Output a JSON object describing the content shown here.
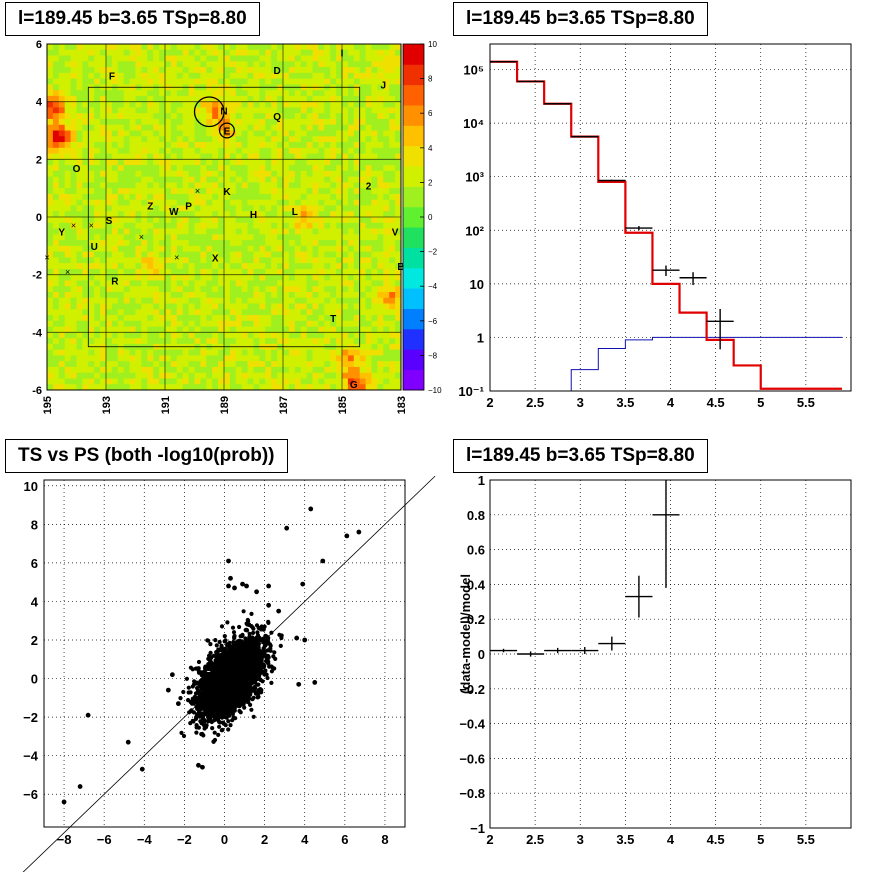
{
  "titles": {
    "map": "l=189.45 b=3.65 TSp=8.80",
    "spectrum": "l=189.45 b=3.65 TSp=8.80",
    "scatter": "TS vs PS (both -log10(prob))",
    "residual": "l=189.45 b=3.65 TSp=8.80"
  },
  "chart_data": [
    {
      "type": "heatmap",
      "xlim": [
        195,
        183
      ],
      "ylim": [
        -6,
        6
      ],
      "x_ticks": [
        "195",
        "193",
        "191",
        "189",
        "187",
        "185",
        "183"
      ],
      "y_ticks": [
        "-6",
        "-4",
        "-2",
        "0",
        "2",
        "4",
        "6"
      ],
      "colorbar_ticks": [
        "10",
        "8",
        "6",
        "4",
        "2",
        "0",
        "−2",
        "−4",
        "−6",
        "−8",
        "−10"
      ],
      "zlim": [
        -10,
        10
      ],
      "background_level": 2,
      "grid": true,
      "source_labels": [
        {
          "name": "I",
          "x": 185.0,
          "y": 5.7
        },
        {
          "name": "D",
          "x": 187.2,
          "y": 5.1
        },
        {
          "name": "J",
          "x": 183.6,
          "y": 4.6
        },
        {
          "name": "F",
          "x": 192.8,
          "y": 4.9
        },
        {
          "name": "N",
          "x": 189.0,
          "y": 3.7
        },
        {
          "name": "Q",
          "x": 187.2,
          "y": 3.5
        },
        {
          "name": "E",
          "x": 188.9,
          "y": 3.0
        },
        {
          "name": "O",
          "x": 194.0,
          "y": 1.7
        },
        {
          "name": "2",
          "x": 184.1,
          "y": 1.1
        },
        {
          "name": "K",
          "x": 188.9,
          "y": 0.9
        },
        {
          "name": "Z",
          "x": 191.5,
          "y": 0.4
        },
        {
          "name": "W",
          "x": 190.7,
          "y": 0.2
        },
        {
          "name": "P",
          "x": 190.2,
          "y": 0.4
        },
        {
          "name": "L",
          "x": 186.6,
          "y": 0.2
        },
        {
          "name": "H",
          "x": 188.0,
          "y": 0.1
        },
        {
          "name": "S",
          "x": 192.9,
          "y": -0.1
        },
        {
          "name": "Y",
          "x": 194.5,
          "y": -0.5
        },
        {
          "name": "V",
          "x": 183.2,
          "y": -0.5
        },
        {
          "name": "U",
          "x": 193.4,
          "y": -1.0
        },
        {
          "name": "X",
          "x": 189.3,
          "y": -1.4
        },
        {
          "name": "B",
          "x": 183.0,
          "y": -1.7
        },
        {
          "name": "R",
          "x": 192.7,
          "y": -2.2
        },
        {
          "name": "T",
          "x": 185.3,
          "y": -3.5
        },
        {
          "name": "G",
          "x": 184.6,
          "y": -5.8
        }
      ],
      "cross_markers": [
        {
          "x": 193.5,
          "y": -0.3
        },
        {
          "x": 191.8,
          "y": -0.7
        },
        {
          "x": 190.6,
          "y": -1.4
        },
        {
          "x": 194.3,
          "y": -1.9
        },
        {
          "x": 195.0,
          "y": -1.4
        },
        {
          "x": 189.9,
          "y": 0.9
        },
        {
          "x": 194.1,
          "y": -0.3
        }
      ],
      "hot_spots": [
        {
          "x": 194.6,
          "y": 2.8,
          "level": 10
        },
        {
          "x": 194.8,
          "y": 3.8,
          "level": 8
        },
        {
          "x": 184.5,
          "y": -5.8,
          "level": 8
        },
        {
          "x": 184.8,
          "y": -5.0,
          "level": 6
        },
        {
          "x": 183.3,
          "y": -2.8,
          "level": 6
        },
        {
          "x": 189.3,
          "y": 3.7,
          "level": 6
        },
        {
          "x": 189.0,
          "y": 3.0,
          "level": 5
        },
        {
          "x": 186.2,
          "y": 0.0,
          "level": 5
        },
        {
          "x": 191.4,
          "y": -1.7,
          "level": 4
        },
        {
          "x": 183.5,
          "y": 5.0,
          "level": 4
        }
      ],
      "circles": [
        {
          "x": 189.5,
          "y": 3.65,
          "r": 0.5
        },
        {
          "x": 188.9,
          "y": 3.0,
          "r": 0.25
        }
      ],
      "inner_box": {
        "x": [
          193.6,
          184.4
        ],
        "y": [
          -4.5,
          4.5
        ]
      }
    },
    {
      "type": "line",
      "x_scale": "linear",
      "y_scale": "log",
      "xlim": [
        2,
        6
      ],
      "ylim": [
        0.1,
        300000
      ],
      "x_ticks": [
        "2",
        "2.5",
        "3",
        "3.5",
        "4",
        "4.5",
        "5",
        "5.5"
      ],
      "y_ticks": [
        "10⁻¹",
        "1",
        "10",
        "10²",
        "10³",
        "10⁴",
        "10⁵"
      ],
      "grid": true,
      "model_histogram": {
        "edges": [
          2.0,
          2.3,
          2.6,
          2.9,
          3.2,
          3.5,
          3.8,
          4.1,
          4.4,
          4.7,
          5.0,
          5.3,
          5.6,
          5.9
        ],
        "values": [
          140000,
          60000,
          23000,
          5600,
          800,
          90,
          10,
          2.9,
          0.9,
          0.3,
          0.11,
          0.11,
          0.11
        ]
      },
      "data_points": [
        {
          "x": 2.15,
          "y": 140000,
          "err": 500
        },
        {
          "x": 2.45,
          "y": 60000,
          "err": 300
        },
        {
          "x": 2.75,
          "y": 23000,
          "err": 200
        },
        {
          "x": 3.05,
          "y": 5600,
          "err": 80
        },
        {
          "x": 3.35,
          "y": 850,
          "err": 30
        },
        {
          "x": 3.65,
          "y": 110,
          "err": 10
        },
        {
          "x": 3.95,
          "y": 18,
          "err": 4
        },
        {
          "x": 4.25,
          "y": 13,
          "err": 3.5
        },
        {
          "x": 4.55,
          "y": 2,
          "err": 1.4
        }
      ],
      "excess_histogram": {
        "edges": [
          2.9,
          3.2,
          3.5,
          3.8,
          4.1,
          5.9
        ],
        "values": [
          0.25,
          0.62,
          0.9,
          1.0,
          1.0
        ]
      }
    },
    {
      "type": "scatter",
      "xlim": [
        -9,
        9
      ],
      "ylim": [
        -7.7,
        10.3
      ],
      "x_ticks": [
        "−8",
        "−6",
        "−4",
        "−2",
        "0",
        "2",
        "4",
        "6",
        "8"
      ],
      "y_ticks": [
        "−6",
        "−4",
        "−2",
        "0",
        "2",
        "4",
        "6",
        "8",
        "10"
      ],
      "grid": true,
      "diagonal": [
        [
          -10.3,
          -10.3
        ],
        [
          10.5,
          10.5
        ]
      ],
      "outliers": [
        [
          -8.0,
          -6.4
        ],
        [
          -7.2,
          -5.6
        ],
        [
          -6.8,
          -1.9
        ],
        [
          -4.8,
          -3.3
        ],
        [
          -4.1,
          -4.7
        ],
        [
          -1.1,
          -4.6
        ],
        [
          -1.3,
          -4.5
        ],
        [
          0.2,
          6.1
        ],
        [
          0.3,
          5.2
        ],
        [
          0.5,
          4.7
        ],
        [
          0.2,
          4.8
        ],
        [
          0.9,
          4.9
        ],
        [
          1.1,
          4.8
        ],
        [
          1.6,
          4.5
        ],
        [
          2.2,
          4.8
        ],
        [
          3.9,
          4.9
        ],
        [
          4.9,
          6.1
        ],
        [
          3.1,
          7.8
        ],
        [
          4.3,
          8.8
        ],
        [
          6.1,
          7.4
        ],
        [
          6.7,
          7.6
        ],
        [
          3.6,
          2.1
        ],
        [
          4.0,
          2.0
        ],
        [
          4.5,
          -0.2
        ],
        [
          3.7,
          -0.3
        ],
        [
          2.7,
          3.5
        ],
        [
          2.2,
          3.8
        ],
        [
          -2.8,
          -0.6
        ],
        [
          -2.3,
          -1.3
        ],
        [
          -2.6,
          0.2
        ]
      ],
      "cloud": {
        "n": 3500,
        "center": [
          0.3,
          0.0
        ],
        "sx": 0.75,
        "sy": 0.95,
        "rho": 0.55
      }
    },
    {
      "type": "scatter",
      "xlim": [
        2,
        6
      ],
      "ylim": [
        -1,
        1
      ],
      "ylabel": "(data-model)/model",
      "x_ticks": [
        "2",
        "2.5",
        "3",
        "3.5",
        "4",
        "4.5",
        "5",
        "5.5"
      ],
      "y_ticks": [
        "−1",
        "−0.8",
        "−0.6",
        "−0.4",
        "−0.2",
        "0",
        "0.2",
        "0.4",
        "0.6",
        "0.8",
        "1"
      ],
      "grid": true,
      "points": [
        {
          "x": 2.15,
          "y": 0.02,
          "xerr": 0.15,
          "yerr": 0.01
        },
        {
          "x": 2.45,
          "y": 0.0,
          "xerr": 0.15,
          "yerr": 0.015
        },
        {
          "x": 2.75,
          "y": 0.02,
          "xerr": 0.15,
          "yerr": 0.015
        },
        {
          "x": 3.05,
          "y": 0.02,
          "xerr": 0.15,
          "yerr": 0.02
        },
        {
          "x": 3.35,
          "y": 0.06,
          "xerr": 0.15,
          "yerr": 0.04
        },
        {
          "x": 3.65,
          "y": 0.33,
          "xerr": 0.15,
          "yerr": 0.12
        },
        {
          "x": 3.95,
          "y": 0.8,
          "xerr": 0.15,
          "yerr": 0.42
        }
      ]
    }
  ]
}
